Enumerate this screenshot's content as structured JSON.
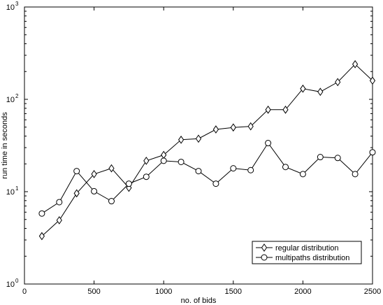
{
  "chart_data": {
    "type": "line",
    "title": "",
    "xlabel": "no. of bids",
    "ylabel": "run time in seconds",
    "xlim": [
      0,
      2500
    ],
    "ylim": [
      1,
      1000
    ],
    "yscale": "log",
    "grid": false,
    "legend_position": "bottom-right",
    "xticks": [
      0,
      500,
      1000,
      1500,
      2000,
      2500
    ],
    "xtick_labels": [
      "0",
      "500",
      "1000",
      "1500",
      "2000",
      "2500"
    ],
    "yticks": [
      1,
      10,
      100,
      1000
    ],
    "ytick_base": [
      "10",
      "10",
      "10",
      "10"
    ],
    "ytick_exp": [
      "0",
      "1",
      "2",
      "3"
    ],
    "x": [
      125,
      250,
      375,
      500,
      625,
      750,
      875,
      1000,
      1125,
      1250,
      1375,
      1500,
      1625,
      1750,
      1875,
      2000,
      2125,
      2250,
      2375,
      2500
    ],
    "series": [
      {
        "name": "regular distribution",
        "marker": "diamond",
        "color": "#000000",
        "values": [
          3.3,
          4.9,
          9.6,
          15.5,
          17.9,
          11.0,
          21.6,
          25.0,
          36.5,
          37.5,
          47.2,
          49.6,
          51.0,
          77.2,
          77.2,
          130.4,
          120.6,
          153.7,
          240.0,
          159.3
        ]
      },
      {
        "name": "multipaths distribution",
        "marker": "circle",
        "color": "#000000",
        "values": [
          5.8,
          7.7,
          16.7,
          10.1,
          7.9,
          12.2,
          14.5,
          21.6,
          21.0,
          16.7,
          12.2,
          17.9,
          17.1,
          33.6,
          18.5,
          15.5,
          23.7,
          23.2,
          15.5,
          26.7
        ]
      }
    ]
  }
}
